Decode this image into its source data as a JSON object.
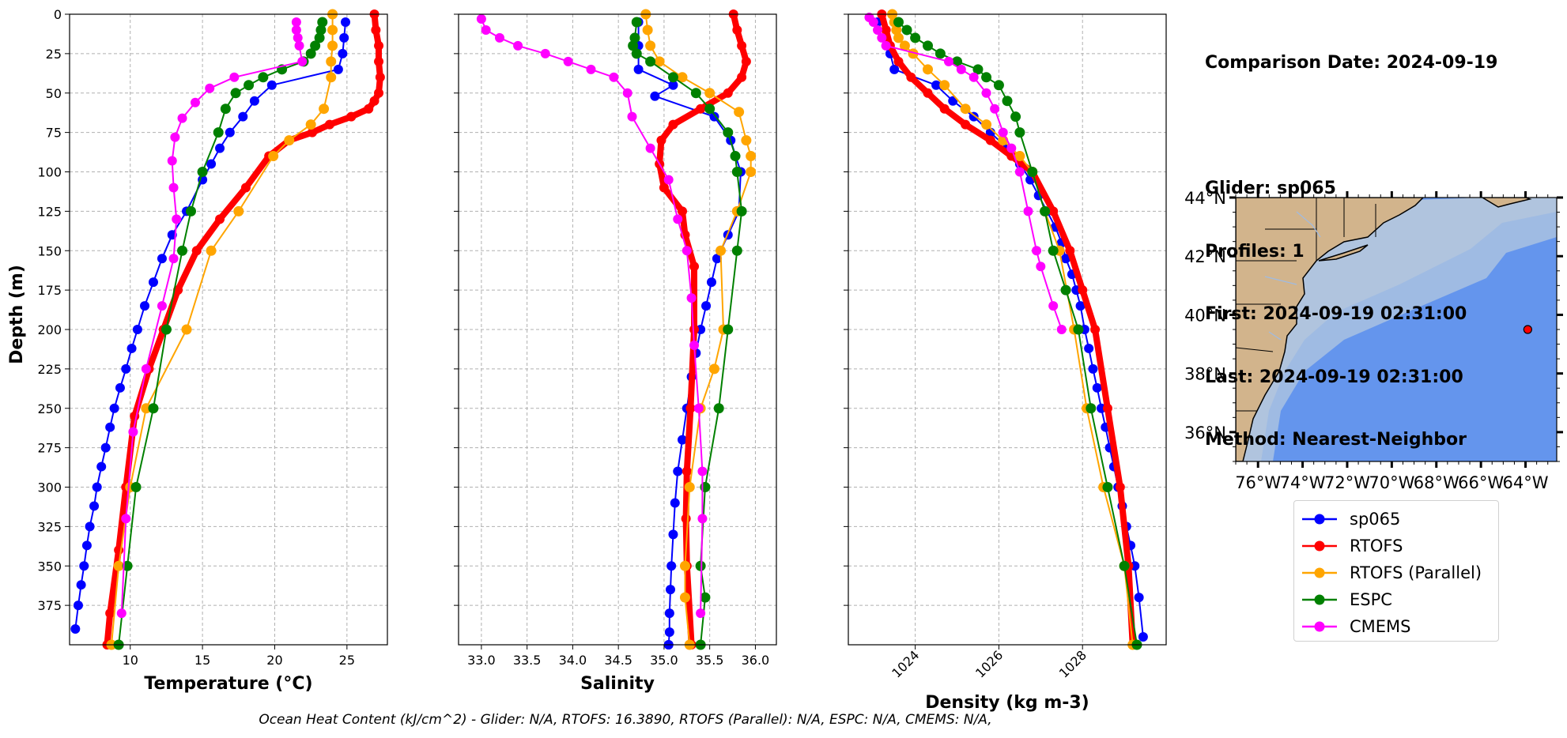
{
  "info": {
    "comparison": "Comparison Date: 2024-09-19",
    "glider": "Glider: sp065",
    "profiles": "Profiles: 1",
    "first": "First: 2024-09-19 02:31:00",
    "last": "Last: 2024-09-19 02:31:00",
    "method": "Method: Nearest-Neighbor"
  },
  "footer": "Ocean Heat Content (kJ/cm^2) - Glider: N/A,  RTOFS: 16.3890,  RTOFS (Parallel): N/A,  ESPC: N/A,  CMEMS: N/A,",
  "colors": {
    "sp065": "#0000ff",
    "RTOFS": "#ff0000",
    "RTOFS (Parallel)": "#ffa500",
    "ESPC": "#008000",
    "CMEMS": "#ff00ff",
    "glider_raw": "#00ffff",
    "land": "#d2b48c",
    "shelf": "#b0c4de",
    "slope": "#9fbbe3",
    "deep": "#6495ed"
  },
  "legend": [
    "sp065",
    "RTOFS",
    "RTOFS (Parallel)",
    "ESPC",
    "CMEMS"
  ],
  "chart_data": [
    {
      "type": "line",
      "xlabel": "Temperature (°C)",
      "ylabel": "Depth (m)",
      "xlim": [
        5.8,
        27.8
      ],
      "ylim": [
        400,
        0
      ],
      "xticks": [
        10,
        15,
        20,
        25
      ],
      "yticks": [
        0,
        25,
        50,
        75,
        100,
        125,
        150,
        175,
        200,
        225,
        250,
        275,
        300,
        325,
        350,
        375
      ],
      "grid": true,
      "series": [
        {
          "name": "sp065",
          "x": [
            24.9,
            24.8,
            24.7,
            24.4,
            19.8,
            18.6,
            17.8,
            16.9,
            16.2,
            15.6,
            15.0,
            13.9,
            12.9,
            12.2,
            11.6,
            11.0,
            10.5,
            10.1,
            9.7,
            9.3,
            8.9,
            8.6,
            8.3,
            8.0,
            7.7,
            7.5,
            7.2,
            7.0,
            6.8,
            6.6,
            6.4,
            6.2
          ],
          "y": [
            5,
            15,
            25,
            35,
            45,
            55,
            65,
            75,
            85,
            95,
            105,
            125,
            140,
            155,
            170,
            185,
            200,
            212,
            225,
            237,
            250,
            262,
            275,
            287,
            300,
            312,
            325,
            337,
            350,
            362,
            375,
            390
          ]
        },
        {
          "name": "RTOFS",
          "x": [
            26.9,
            27.0,
            27.2,
            27.2,
            27.3,
            27.2,
            26.9,
            26.5,
            25.3,
            23.8,
            22.6,
            21.0,
            19.6,
            18.0,
            16.2,
            14.6,
            13.3,
            12.3,
            11.3,
            10.3,
            9.7,
            9.2,
            8.6,
            8.4
          ],
          "y": [
            0,
            10,
            20,
            30,
            40,
            50,
            55,
            60,
            65,
            70,
            75,
            80,
            90,
            110,
            130,
            150,
            175,
            200,
            225,
            255,
            300,
            340,
            380,
            400
          ]
        },
        {
          "name": "RTOFS (Parallel)",
          "x": [
            24.0,
            24.0,
            24.0,
            23.9,
            23.9,
            23.4,
            22.5,
            21.0,
            19.9,
            17.5,
            15.6,
            13.9,
            11.1,
            10.0,
            9.2,
            8.7
          ],
          "y": [
            0,
            10,
            20,
            30,
            40,
            60,
            70,
            80,
            90,
            125,
            150,
            200,
            250,
            300,
            350,
            400
          ]
        },
        {
          "name": "ESPC",
          "x": [
            23.3,
            23.2,
            23.1,
            22.8,
            22.5,
            22.0,
            20.5,
            19.2,
            18.2,
            17.3,
            16.6,
            16.1,
            15.0,
            14.2,
            13.6,
            12.5,
            11.6,
            10.4,
            9.8,
            9.2
          ],
          "y": [
            5,
            10,
            15,
            20,
            25,
            30,
            35,
            40,
            45,
            50,
            60,
            75,
            100,
            125,
            150,
            200,
            250,
            300,
            350,
            400
          ]
        },
        {
          "name": "CMEMS",
          "x": [
            21.5,
            21.5,
            21.6,
            21.7,
            21.9,
            17.2,
            15.5,
            14.5,
            13.6,
            13.1,
            12.9,
            13.0,
            13.2,
            13.0,
            12.2,
            11.1,
            10.2,
            9.7,
            9.4
          ],
          "y": [
            5,
            10,
            15,
            20,
            30,
            40,
            47,
            56,
            66,
            78,
            93,
            110,
            130,
            155,
            185,
            225,
            265,
            320,
            380
          ]
        }
      ]
    },
    {
      "type": "line",
      "xlabel": "Salinity",
      "xlim": [
        32.75,
        36.23
      ],
      "ylim": [
        400,
        0
      ],
      "xticks": [
        33.0,
        33.5,
        34.0,
        34.5,
        35.0,
        35.5,
        36.0
      ],
      "grid": true,
      "series": [
        {
          "name": "sp065",
          "x": [
            34.72,
            34.72,
            34.72,
            35.1,
            34.9,
            35.55,
            35.73,
            35.84,
            35.82,
            35.7,
            35.58,
            35.52,
            35.46,
            35.4,
            35.35,
            35.3,
            35.25,
            35.2,
            35.15,
            35.12,
            35.1,
            35.08,
            35.07,
            35.06,
            35.06,
            35.05,
            35.05
          ],
          "y": [
            5,
            20,
            35,
            45,
            52,
            65,
            80,
            100,
            125,
            140,
            155,
            170,
            185,
            200,
            215,
            230,
            250,
            270,
            290,
            310,
            330,
            350,
            365,
            380,
            392,
            400,
            400
          ]
        },
        {
          "name": "RTOFS",
          "x": [
            35.76,
            35.8,
            35.85,
            35.9,
            35.85,
            35.7,
            35.4,
            35.1,
            34.97,
            34.95,
            35.0,
            35.2,
            35.23,
            35.33,
            35.33,
            35.29,
            35.25,
            35.24,
            35.25,
            35.3
          ],
          "y": [
            0,
            10,
            20,
            30,
            40,
            50,
            60,
            70,
            80,
            95,
            110,
            125,
            140,
            160,
            200,
            250,
            290,
            320,
            350,
            400
          ]
        },
        {
          "name": "RTOFS (Parallel)",
          "x": [
            34.8,
            34.82,
            34.85,
            34.95,
            35.2,
            35.5,
            35.82,
            35.9,
            35.95,
            35.95,
            35.8,
            35.62,
            35.65,
            35.55,
            35.4,
            35.28,
            35.23,
            35.23,
            35.28
          ],
          "y": [
            0,
            10,
            20,
            30,
            40,
            50,
            62,
            80,
            90,
            100,
            125,
            150,
            200,
            225,
            250,
            300,
            350,
            370,
            400
          ]
        },
        {
          "name": "ESPC",
          "x": [
            34.7,
            34.68,
            34.66,
            34.7,
            34.85,
            35.1,
            35.35,
            35.5,
            35.7,
            35.78,
            35.8,
            35.85,
            35.8,
            35.7,
            35.6,
            35.45,
            35.4,
            35.45,
            35.4
          ],
          "y": [
            5,
            15,
            20,
            25,
            30,
            40,
            50,
            60,
            75,
            90,
            100,
            125,
            150,
            200,
            250,
            300,
            350,
            370,
            400
          ]
        },
        {
          "name": "CMEMS",
          "x": [
            33.0,
            33.05,
            33.2,
            33.4,
            33.7,
            33.95,
            34.2,
            34.45,
            34.6,
            34.65,
            34.85,
            35.05,
            35.15,
            35.25,
            35.3,
            35.33,
            35.38,
            35.42,
            35.42,
            35.4
          ],
          "y": [
            3,
            10,
            15,
            20,
            25,
            30,
            35,
            40,
            50,
            65,
            85,
            105,
            130,
            150,
            180,
            210,
            250,
            290,
            320,
            380
          ]
        }
      ]
    },
    {
      "type": "line",
      "xlabel": "Density (kg m-3)",
      "xlim": [
        1022.4,
        1030.0
      ],
      "ylim": [
        400,
        0
      ],
      "xticks": [
        1024,
        1026,
        1028
      ],
      "grid": true,
      "series": [
        {
          "name": "sp065",
          "x": [
            1023.1,
            1023.3,
            1023.4,
            1023.5,
            1024.5,
            1024.9,
            1025.4,
            1025.8,
            1026.2,
            1026.5,
            1026.75,
            1026.95,
            1027.15,
            1027.35,
            1027.5,
            1027.6,
            1027.75,
            1027.85,
            1027.95,
            1028.05,
            1028.15,
            1028.25,
            1028.35,
            1028.45,
            1028.55,
            1028.65,
            1028.75,
            1028.85,
            1028.95,
            1029.05,
            1029.15,
            1029.25,
            1029.35,
            1029.45
          ],
          "y": [
            5,
            15,
            25,
            35,
            45,
            55,
            65,
            75,
            85,
            95,
            105,
            115,
            125,
            135,
            145,
            155,
            165,
            175,
            185,
            200,
            212,
            225,
            237,
            250,
            262,
            275,
            287,
            300,
            312,
            325,
            337,
            350,
            370,
            395
          ]
        },
        {
          "name": "RTOFS",
          "x": [
            1023.2,
            1023.3,
            1023.4,
            1023.6,
            1023.9,
            1024.3,
            1024.7,
            1025.2,
            1025.8,
            1026.3,
            1026.8,
            1027.3,
            1027.7,
            1028.0,
            1028.3,
            1028.6,
            1028.9,
            1029.1,
            1029.2
          ],
          "y": [
            0,
            10,
            20,
            30,
            40,
            50,
            60,
            70,
            80,
            90,
            100,
            125,
            150,
            175,
            200,
            250,
            300,
            350,
            400
          ]
        },
        {
          "name": "RTOFS (Parallel)",
          "x": [
            1023.45,
            1023.5,
            1023.55,
            1023.6,
            1023.75,
            1023.95,
            1024.3,
            1024.7,
            1025.2,
            1025.7,
            1026.1,
            1026.5,
            1026.8,
            1027.1,
            1027.45,
            1027.8,
            1028.1,
            1028.5,
            1029.0,
            1029.2
          ],
          "y": [
            0,
            5,
            10,
            15,
            20,
            25,
            35,
            45,
            60,
            70,
            80,
            90,
            100,
            125,
            150,
            200,
            250,
            300,
            350,
            400
          ]
        },
        {
          "name": "ESPC",
          "x": [
            1023.6,
            1023.8,
            1024.0,
            1024.3,
            1024.6,
            1025.0,
            1025.5,
            1025.7,
            1026.0,
            1026.2,
            1026.4,
            1026.5,
            1026.8,
            1027.1,
            1027.3,
            1027.6,
            1027.9,
            1028.2,
            1028.6,
            1029.0,
            1029.3
          ],
          "y": [
            5,
            10,
            15,
            20,
            25,
            30,
            35,
            40,
            45,
            55,
            65,
            75,
            100,
            125,
            150,
            175,
            200,
            250,
            300,
            350,
            400
          ]
        },
        {
          "name": "CMEMS",
          "x": [
            1022.9,
            1023.0,
            1023.1,
            1023.2,
            1023.3,
            1024.8,
            1025.1,
            1025.4,
            1025.7,
            1025.9,
            1026.1,
            1026.3,
            1026.5,
            1026.7,
            1026.9,
            1027.0,
            1027.3,
            1027.5
          ],
          "y": [
            2,
            5,
            10,
            15,
            20,
            30,
            35,
            40,
            50,
            60,
            75,
            85,
            100,
            125,
            150,
            160,
            185,
            200
          ]
        }
      ]
    }
  ],
  "map": {
    "lat_labels": [
      "44°N",
      "42°N",
      "40°N",
      "38°N",
      "36°N"
    ],
    "lon_labels": [
      "76°W",
      "74°W",
      "72°W",
      "70°W",
      "68°W",
      "66°W",
      "64°W"
    ],
    "lon_range": [
      -77.0,
      -62.6
    ],
    "lat_range": [
      35.0,
      44.0
    ],
    "glider_position": {
      "lon": -63.9,
      "lat": 39.5
    }
  }
}
